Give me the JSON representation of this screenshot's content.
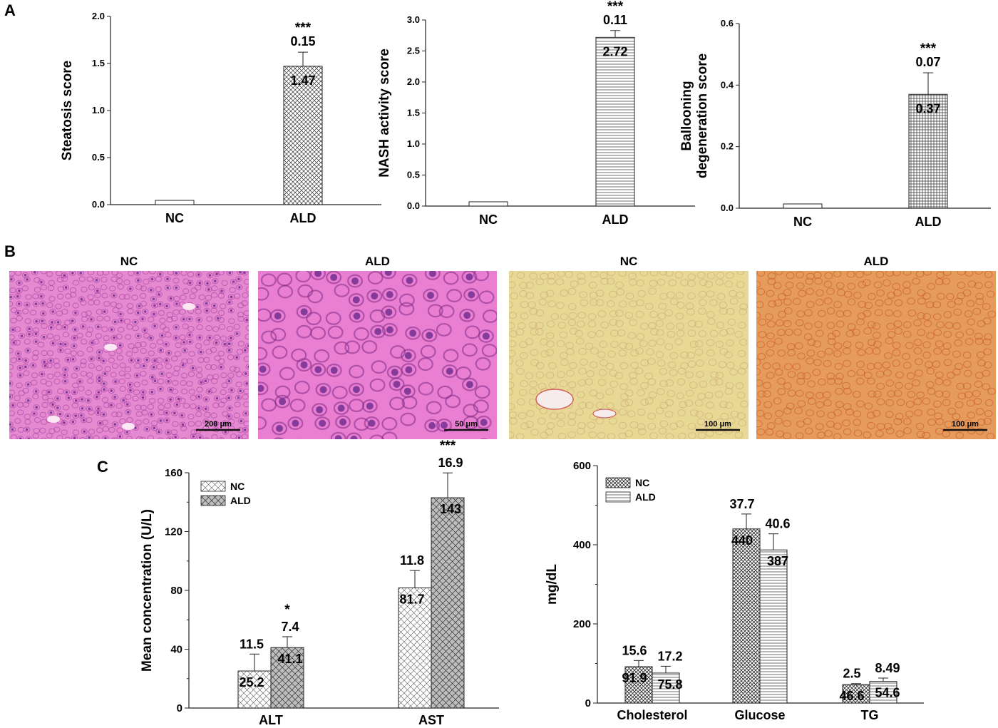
{
  "panels": {
    "A": "A",
    "B": "B",
    "C": "C"
  },
  "chart_data": [
    {
      "type": "bar",
      "panel": "A",
      "ylabel": "Steatosis score",
      "categories": [
        "NC",
        "ALD"
      ],
      "values": [
        0.0,
        1.47
      ],
      "errors": [
        0.0,
        0.15
      ],
      "value_labels": [
        "",
        "1.47"
      ],
      "error_labels": [
        "",
        "0.15"
      ],
      "significance": [
        "",
        "***"
      ],
      "ylim": [
        0,
        2.0
      ],
      "yticks": [
        "0.0",
        "0.5",
        "1.0",
        "1.5",
        "2.0"
      ],
      "patterns": [
        "cross",
        "cross"
      ]
    },
    {
      "type": "bar",
      "panel": "A",
      "ylabel": "NASH activity score",
      "categories": [
        "NC",
        "ALD"
      ],
      "values": [
        0.0,
        2.72
      ],
      "errors": [
        0.0,
        0.11
      ],
      "value_labels": [
        "",
        "2.72"
      ],
      "error_labels": [
        "",
        "0.11"
      ],
      "significance": [
        "",
        "***"
      ],
      "ylim": [
        0,
        3.0
      ],
      "yticks": [
        "0.0",
        "0.5",
        "1.0",
        "1.5",
        "2.0",
        "2.5",
        "3.0"
      ],
      "patterns": [
        "hlines",
        "hlines"
      ]
    },
    {
      "type": "bar",
      "panel": "A",
      "ylabel": [
        "Ballooning",
        "degeneration score"
      ],
      "categories": [
        "NC",
        "ALD"
      ],
      "values": [
        0.0,
        0.37
      ],
      "errors": [
        0.0,
        0.07
      ],
      "value_labels": [
        "",
        "0.37"
      ],
      "error_labels": [
        "",
        "0.07"
      ],
      "significance": [
        "",
        "***"
      ],
      "ylim": [
        0,
        0.6
      ],
      "yticks": [
        "0.0",
        "0.2",
        "0.4",
        "0.6"
      ],
      "patterns": [
        "grid",
        "grid"
      ]
    },
    {
      "type": "bar",
      "panel": "C",
      "ylabel": "Mean concentration (U/L)",
      "categories": [
        "ALT",
        "AST"
      ],
      "ylim": [
        0,
        160
      ],
      "yticks": [
        "0",
        "40",
        "80",
        "120",
        "160"
      ],
      "legend": "top-left",
      "series": [
        {
          "name": "NC",
          "values": [
            25.2,
            81.7
          ],
          "errors": [
            11.5,
            11.8
          ],
          "value_labels": [
            "25.2",
            "81.7"
          ],
          "error_labels": [
            "11.5",
            "11.8"
          ],
          "significance": [
            "",
            ""
          ],
          "fill": "#ffffff",
          "pattern": "cross-light"
        },
        {
          "name": "ALD",
          "values": [
            41.1,
            143
          ],
          "errors": [
            7.4,
            16.9
          ],
          "value_labels": [
            "41.1",
            "143"
          ],
          "error_labels": [
            "7.4",
            "16.9"
          ],
          "significance": [
            "*",
            "***"
          ],
          "fill": "#bdbdbd",
          "pattern": "cross-dark"
        }
      ]
    },
    {
      "type": "bar",
      "panel": "C",
      "ylabel": "mg/dL",
      "categories": [
        "Cholesterol",
        "Glucose",
        "TG"
      ],
      "ylim": [
        0,
        600
      ],
      "yticks": [
        "0",
        "200",
        "400",
        "600"
      ],
      "legend": "top-left",
      "series": [
        {
          "name": "NC",
          "values": [
            91.9,
            440,
            46.6
          ],
          "errors": [
            15.6,
            37.7,
            2.5
          ],
          "value_labels": [
            "91.9",
            "440",
            "46.6"
          ],
          "error_labels": [
            "15.6",
            "37.7",
            "2.5"
          ],
          "significance": [
            "",
            "",
            ""
          ],
          "fill": "#ffffff",
          "pattern": "cross-dense"
        },
        {
          "name": "ALD",
          "values": [
            75.8,
            387,
            54.6
          ],
          "errors": [
            17.2,
            40.6,
            8.49
          ],
          "value_labels": [
            "75.8",
            "387",
            "54.6"
          ],
          "error_labels": [
            "17.2",
            "40.6",
            "8.49"
          ],
          "significance": [
            "",
            "",
            ""
          ],
          "fill": "#ffffff",
          "pattern": "hlines"
        }
      ]
    }
  ],
  "micrographs": [
    {
      "title": "NC",
      "scale": "200 μm",
      "stain": "H&E",
      "base_color": "#e58ad0",
      "dot_color": "#a0379b"
    },
    {
      "title": "ALD",
      "scale": "50 μm",
      "stain": "H&E",
      "base_color": "#ea7fd2",
      "dot_color": "#7d2a86"
    },
    {
      "title": "NC",
      "scale": "100 μm",
      "stain": "Sirius red",
      "base_color": "#e8d896",
      "dot_color": "#c9a46e"
    },
    {
      "title": "ALD",
      "scale": "100 μm",
      "stain": "Sirius red",
      "base_color": "#e59b5c",
      "dot_color": "#c24f1c"
    }
  ]
}
